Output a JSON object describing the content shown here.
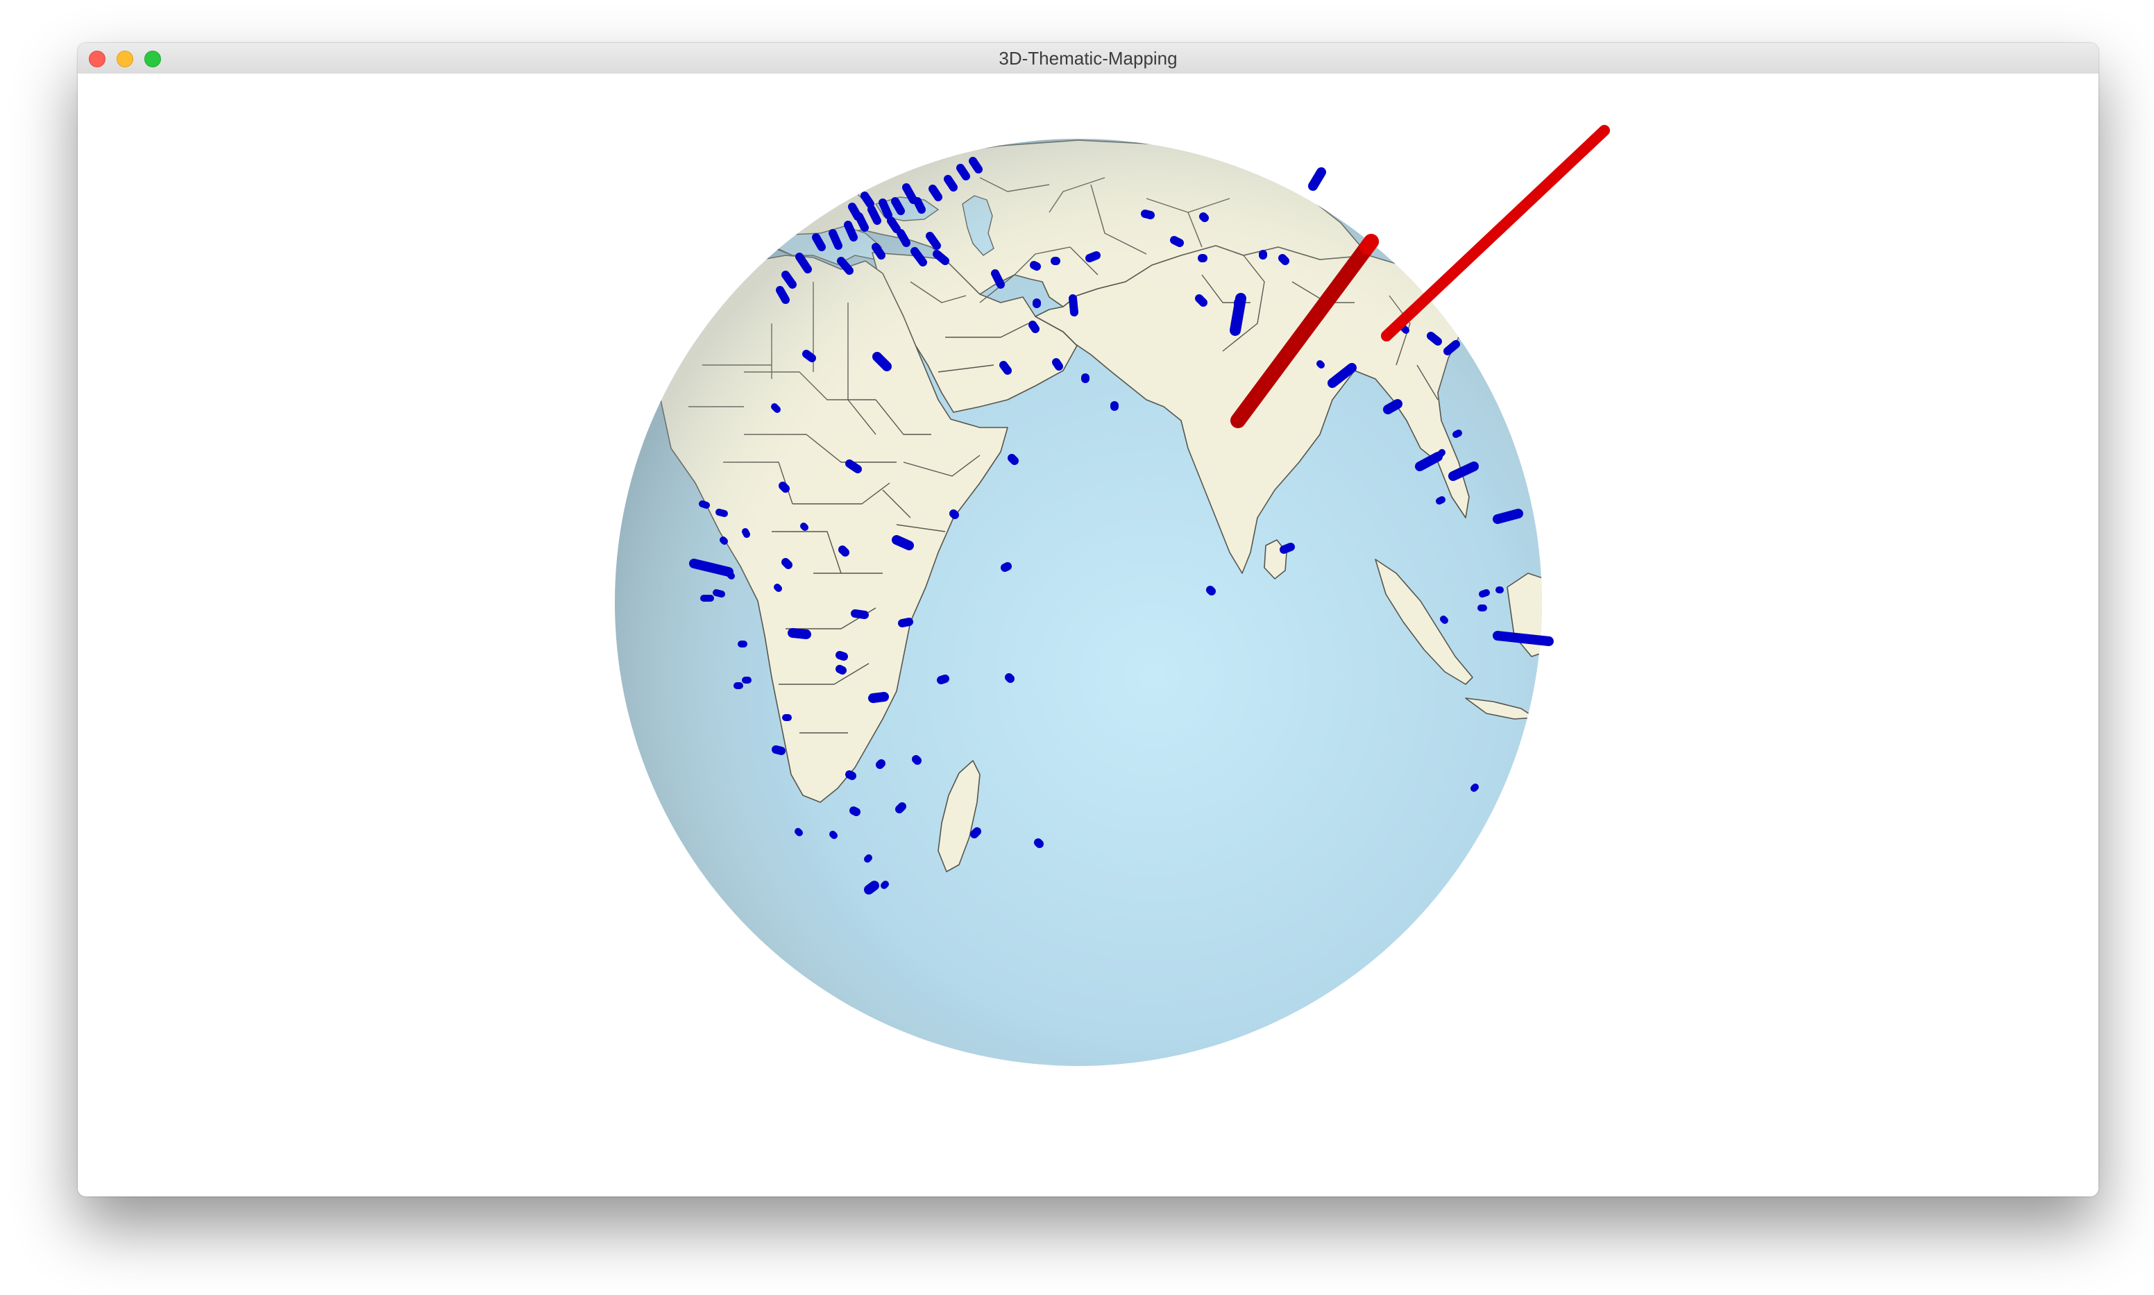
{
  "window": {
    "title": "3D-Thematic-Mapping"
  },
  "colors": {
    "ocean_center": "#c6eaf8",
    "ocean_edge": "#9bbfcf",
    "land": "#f2f0db",
    "border": "#55554d",
    "marker_default": "#0000cc",
    "marker_highlight": "#dd0000"
  },
  "map": {
    "view": "3D globe centred on the Indian Ocean",
    "highlighted_markers": 2
  }
}
